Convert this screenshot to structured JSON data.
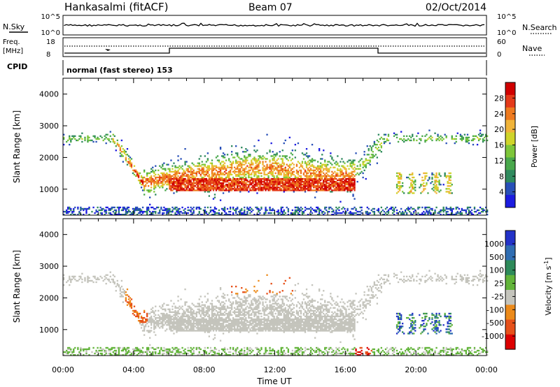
{
  "header": {
    "station": "Hankasalmi (fitACF)",
    "beam": "Beam 07",
    "date": "02/Oct/2014"
  },
  "strip_labels": {
    "nsky": "N.Sky",
    "freq_line1": "Freq.",
    "freq_line2": "[MHz]",
    "cpid": "CPID",
    "nsearch": "N.Search",
    "nave": "Nave",
    "noise_top": "10^5",
    "noise_bottom": "10^0",
    "noise_top_right": "10^5",
    "noise_bottom_right": "10^0",
    "freq_top": "18",
    "freq_bottom": "8",
    "nave_top": "60",
    "nave_bottom": "0",
    "cpid_text": "normal (fast stereo) 153"
  },
  "chart_data": [
    {
      "type": "heatmap",
      "title": "",
      "ylabel": "Slant Range [km]",
      "xlabel": "",
      "ylim": [
        180,
        4500
      ],
      "xlim": [
        0,
        24
      ],
      "y_ticks": [
        "1000",
        "2000",
        "3000",
        "4000"
      ],
      "x_ticks": [
        "00:00",
        "04:00",
        "08:00",
        "12:00",
        "16:00",
        "20:00",
        "00:00"
      ],
      "colorbar": {
        "label": "Power [dB]",
        "ticks": [
          "4",
          "8",
          "12",
          "16",
          "20",
          "24",
          "28"
        ],
        "colors": [
          "#1c1ce0",
          "#2850b8",
          "#2f8a5e",
          "#49a84c",
          "#7ec63a",
          "#cfd42a",
          "#f0b43a",
          "#ee7a1f",
          "#e43a1a",
          "#d00000"
        ]
      }
    },
    {
      "type": "heatmap",
      "title": "",
      "ylabel": "Slant Range [km]",
      "xlabel": "Time UT",
      "ylim": [
        180,
        4500
      ],
      "xlim": [
        0,
        24
      ],
      "y_ticks": [
        "1000",
        "2000",
        "3000",
        "4000"
      ],
      "x_ticks": [
        "00:00",
        "04:00",
        "08:00",
        "12:00",
        "16:00",
        "20:00",
        "00:00"
      ],
      "colorbar": {
        "label": "Velocity [m s^-1]",
        "ticks": [
          "1000",
          "500",
          "100",
          "25",
          "-25",
          "-100",
          "-500",
          "-1000"
        ],
        "colors": [
          "#2332c8",
          "#2f6db2",
          "#2e8a5a",
          "#62b43a",
          "#c4c4bc",
          "#ec8a1a",
          "#e6501a",
          "#dc0000"
        ]
      }
    }
  ]
}
